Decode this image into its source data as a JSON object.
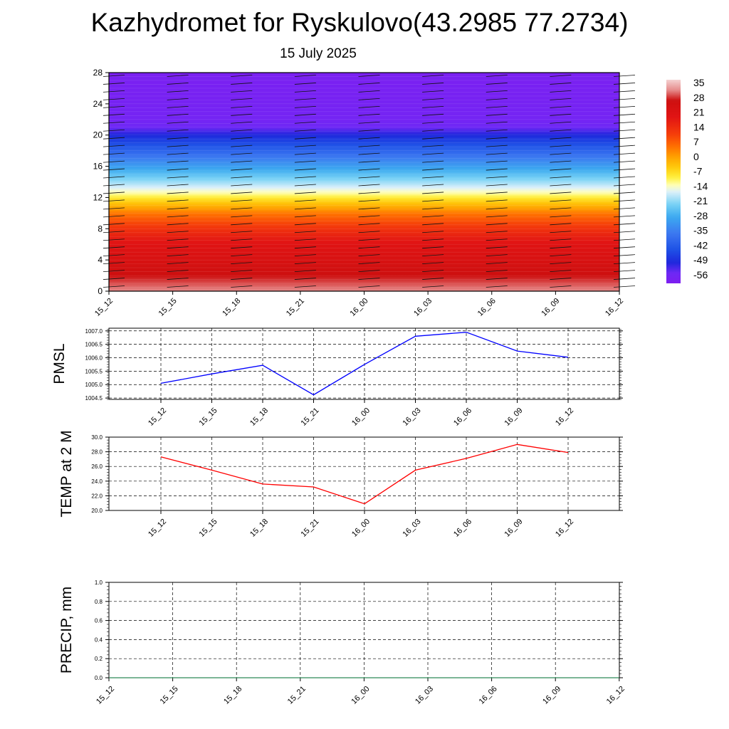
{
  "title": "Kazhydromet for Ryskulovo(43.2985 77.2734)",
  "subtitle": "15 July 2025",
  "time_labels": [
    "15_12",
    "15_15",
    "15_18",
    "15_21",
    "16_00",
    "16_03",
    "16_06",
    "16_09",
    "16_12"
  ],
  "chart_data": [
    {
      "type": "heatmap",
      "title": "",
      "xlabel": "",
      "ylabel": "",
      "x": [
        "15_12",
        "15_15",
        "15_18",
        "15_21",
        "16_00",
        "16_03",
        "16_06",
        "16_09",
        "16_12"
      ],
      "ylim": [
        0,
        28
      ],
      "yticks": [
        0,
        4,
        8,
        12,
        16,
        20,
        24,
        28
      ],
      "colorbar": {
        "labels": [
          "35",
          "28",
          "21",
          "14",
          "7",
          "0",
          "-7",
          "-14",
          "-21",
          "-28",
          "-35",
          "-42",
          "-49",
          "-56"
        ],
        "range": [
          -60,
          38
        ]
      },
      "temperature_profile": [
        {
          "height": 0,
          "temp": 33
        },
        {
          "height": 2,
          "temp": 28
        },
        {
          "height": 4,
          "temp": 24
        },
        {
          "height": 6,
          "temp": 21
        },
        {
          "height": 8,
          "temp": 14
        },
        {
          "height": 10,
          "temp": 5
        },
        {
          "height": 11.5,
          "temp": -5
        },
        {
          "height": 12.5,
          "temp": -12
        },
        {
          "height": 14,
          "temp": -20
        },
        {
          "height": 16,
          "temp": -30
        },
        {
          "height": 18,
          "temp": -40
        },
        {
          "height": 20,
          "temp": -50
        },
        {
          "height": 21,
          "temp": -55
        },
        {
          "height": 22,
          "temp": -57
        },
        {
          "height": 28,
          "temp": -59
        }
      ],
      "grid": false
    },
    {
      "type": "line",
      "ylabel": "PMSL",
      "categories": [
        "15_12",
        "15_15",
        "15_18",
        "15_21",
        "16_00",
        "16_03",
        "16_06",
        "16_09",
        "16_12"
      ],
      "series": [
        {
          "values": [
            1005.05,
            1005.4,
            1005.72,
            1004.62,
            1005.75,
            1006.8,
            1006.95,
            1006.25,
            1006.02
          ],
          "color": "#0000ff"
        }
      ],
      "ylim": [
        1004.45,
        1007.1
      ],
      "yticks": [
        1004.5,
        1005.0,
        1005.5,
        1006.0,
        1006.5,
        1007.0
      ],
      "ytick_labels": [
        "1004.5",
        "1005.0",
        "1005.5",
        "1006.0",
        "1006.5",
        "1007.0"
      ],
      "grid": true
    },
    {
      "type": "line",
      "ylabel": "TEMP at 2 M",
      "categories": [
        "15_12",
        "15_15",
        "15_18",
        "15_21",
        "16_00",
        "16_03",
        "16_06",
        "16_09",
        "16_12"
      ],
      "series": [
        {
          "values": [
            27.3,
            25.5,
            23.6,
            23.2,
            20.9,
            25.5,
            27.1,
            29.0,
            27.9
          ],
          "color": "#ff0000"
        }
      ],
      "ylim": [
        20.0,
        30.0
      ],
      "yticks": [
        20,
        22,
        24,
        26,
        28,
        30
      ],
      "ytick_labels": [
        "20.0",
        "22.0",
        "24.0",
        "26.0",
        "28.0",
        "30.0"
      ],
      "grid": true
    },
    {
      "type": "line",
      "ylabel": "PRECIP, mm",
      "x": [
        "15_12",
        "15_15",
        "15_18",
        "15_21",
        "16_00",
        "16_03",
        "16_06",
        "16_09",
        "16_12"
      ],
      "series": [
        {
          "values": [
            0,
            0,
            0,
            0,
            0,
            0,
            0,
            0,
            0
          ],
          "color": "#2e8b57"
        }
      ],
      "ylim": [
        0.0,
        1.0
      ],
      "yticks": [
        0,
        0.2,
        0.4,
        0.6,
        0.8,
        1.0
      ],
      "ytick_labels": [
        "0.0",
        "0.2",
        "0.4",
        "0.6",
        "0.8",
        "1.0"
      ],
      "grid": true
    }
  ]
}
